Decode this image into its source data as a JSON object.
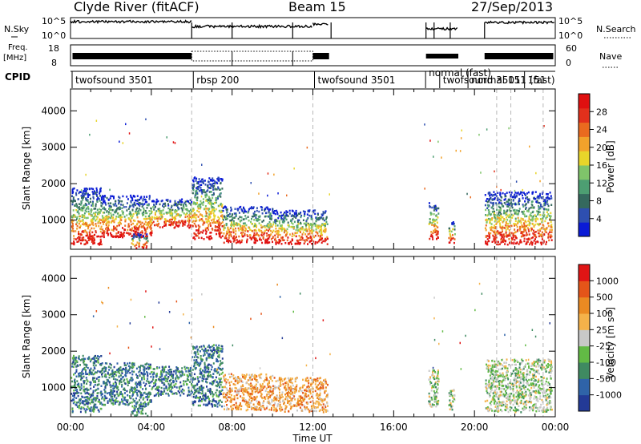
{
  "chart_data": {
    "type": "heatmap",
    "header": {
      "station": "Clyde River (fitACF)",
      "beam": "Beam 15",
      "date": "27/Sep/2013"
    },
    "noise_panel": {
      "left_label": "N.Sky",
      "right_label": "N.Search",
      "left_ticks": [
        "10^5",
        "10^0"
      ],
      "right_ticks": [
        "10^5",
        "10^0"
      ]
    },
    "freq_panel": {
      "left_label_1": "Freq.",
      "left_label_2": "[MHz]",
      "left_ticks": [
        "18",
        "8"
      ],
      "right_label": "Nave",
      "right_ticks": [
        "60",
        "0"
      ]
    },
    "cpid": {
      "label": "CPID",
      "segments": [
        {
          "text": "twofsound 3501",
          "start": 0.0
        },
        {
          "text": "rbsp 200",
          "start": 6.0
        },
        {
          "text": "twofsound 3501",
          "start": 12.0
        },
        {
          "text": "normal (fast)",
          "start": 17.5
        },
        {
          "text": "twofsound 3501",
          "start": 18.2
        },
        {
          "text": "normal 151 (fast)",
          "start": 19.6
        },
        {
          "text": "151",
          "start": 22.4
        }
      ]
    },
    "time_axis": {
      "label": "Time UT",
      "range": [
        0,
        24
      ],
      "ticks": [
        0,
        4,
        8,
        12,
        16,
        20,
        24
      ],
      "tick_labels": [
        "00:00",
        "04:00",
        "08:00",
        "12:00",
        "16:00",
        "20:00",
        "00:00"
      ]
    },
    "range_axis": {
      "label": "Slant Range [km]",
      "range": [
        200,
        4600
      ],
      "ticks": [
        1000,
        2000,
        3000,
        4000
      ],
      "tick_labels": [
        "1000",
        "2000",
        "3000",
        "4000"
      ]
    },
    "power_panel": {
      "colorbar_label": "Power [dB]",
      "tick_labels": [
        "28",
        "24",
        "20",
        "16",
        "12",
        "8",
        "4"
      ],
      "colors": [
        "#0a1bd6",
        "#2e4fb0",
        "#35695e",
        "#4d9e72",
        "#7fc46a",
        "#e8d52a",
        "#f2a22b",
        "#ea6a1f",
        "#e2301c",
        "#e01010"
      ]
    },
    "velocity_panel": {
      "colorbar_label": "Velocity [m s^-1]",
      "tick_labels": [
        "1000",
        "500",
        "100",
        "25",
        "-25",
        "-100",
        "-500",
        "-1000"
      ],
      "colors": [
        "#233a96",
        "#2f63a8",
        "#3f8a61",
        "#62ba45",
        "#c8c8c8",
        "#f4b24a",
        "#ea8a22",
        "#e45519",
        "#e01515"
      ]
    },
    "echo_bands": [
      {
        "t0": 0.0,
        "t1": 1.5,
        "r0": 350,
        "r1": 1900
      },
      {
        "t0": 1.5,
        "t1": 4.0,
        "r0": 550,
        "r1": 1700
      },
      {
        "t0": 3.0,
        "t1": 3.8,
        "r0": 250,
        "r1": 650
      },
      {
        "t0": 4.0,
        "t1": 6.0,
        "r0": 800,
        "r1": 1600
      },
      {
        "t0": 6.0,
        "t1": 7.5,
        "r0": 500,
        "r1": 2200
      },
      {
        "t0": 7.5,
        "t1": 10.0,
        "r0": 400,
        "r1": 1400
      },
      {
        "t0": 10.0,
        "t1": 12.7,
        "r0": 350,
        "r1": 1300
      },
      {
        "t0": 17.7,
        "t1": 18.2,
        "r0": 500,
        "r1": 1500
      },
      {
        "t0": 18.7,
        "t1": 19.0,
        "r0": 400,
        "r1": 1000
      },
      {
        "t0": 20.5,
        "t1": 23.8,
        "r0": 350,
        "r1": 1800
      }
    ],
    "vertical_dashed_lines": [
      6.0,
      12.0,
      21.1,
      21.8,
      23.4
    ]
  }
}
